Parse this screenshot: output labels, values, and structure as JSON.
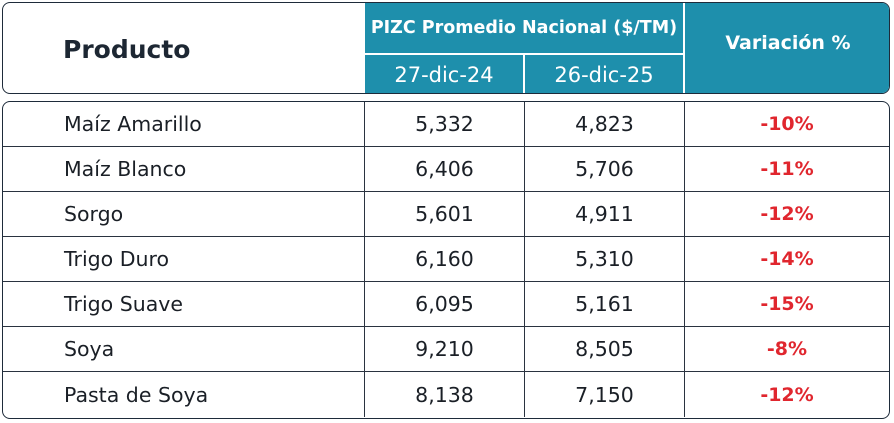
{
  "header": {
    "product_label": "Producto",
    "pizc_title": "PIZC Promedio Nacional ($/TM)",
    "date1": "27-dic-24",
    "date2": "26-dic-25",
    "variation_label": "Variación %"
  },
  "colors": {
    "header_bg": "#1e8fac",
    "negative_text": "#e0262e"
  },
  "rows": [
    {
      "product": "Maíz Amarillo",
      "v1": "5,332",
      "v2": "4,823",
      "var": "-10%"
    },
    {
      "product": "Maíz Blanco",
      "v1": "6,406",
      "v2": "5,706",
      "var": "-11%"
    },
    {
      "product": "Sorgo",
      "v1": "5,601",
      "v2": "4,911",
      "var": "-12%"
    },
    {
      "product": "Trigo Duro",
      "v1": "6,160",
      "v2": "5,310",
      "var": "-14%"
    },
    {
      "product": "Trigo Suave",
      "v1": "6,095",
      "v2": "5,161",
      "var": "-15%"
    },
    {
      "product": "Soya",
      "v1": "9,210",
      "v2": "8,505",
      "var": "-8%"
    },
    {
      "product": "Pasta de Soya",
      "v1": "8,138",
      "v2": "7,150",
      "var": "-12%"
    }
  ]
}
